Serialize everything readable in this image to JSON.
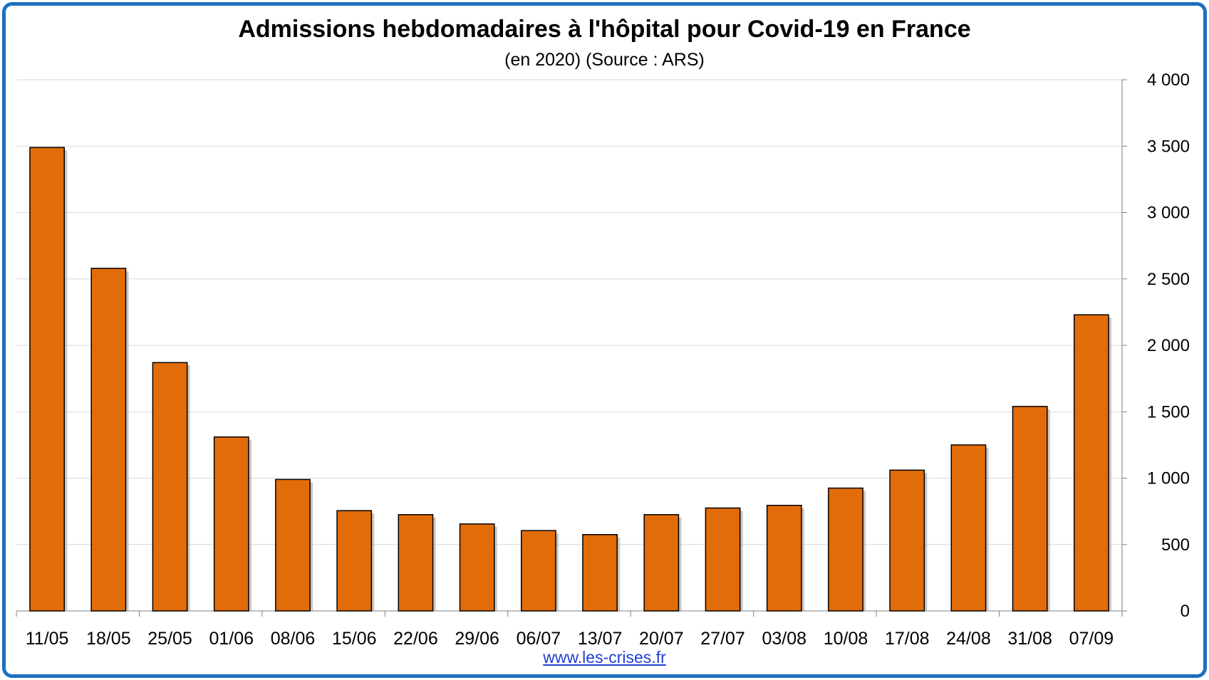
{
  "chart_data": {
    "type": "bar",
    "title": "Admissions hebdomadaires à l'hôpital pour Covid-19 en France",
    "subtitle": "(en 2020) (Source : ARS)",
    "categories": [
      "11/05",
      "18/05",
      "25/05",
      "01/06",
      "08/06",
      "15/06",
      "22/06",
      "29/06",
      "06/07",
      "13/07",
      "20/07",
      "27/07",
      "03/08",
      "10/08",
      "17/08",
      "24/08",
      "31/08",
      "07/09"
    ],
    "values": [
      3490,
      2580,
      1870,
      1310,
      990,
      755,
      725,
      655,
      605,
      575,
      725,
      775,
      795,
      925,
      1060,
      1250,
      1540,
      2230
    ],
    "ylim": [
      0,
      4000
    ],
    "yticks": [
      0,
      500,
      1000,
      1500,
      2000,
      2500,
      3000,
      3500,
      4000
    ],
    "ytick_labels": [
      "0",
      "500",
      "1 000",
      "1 500",
      "2 000",
      "2 500",
      "3 000",
      "3 500",
      "4 000"
    ],
    "y_axis_side": "right",
    "grid": true,
    "legend": false,
    "bar_color": "#e36c0a",
    "bar_edge_color": "#000000",
    "frame_color": "#1f6fc0"
  },
  "source_link": "www.les-crises.fr"
}
